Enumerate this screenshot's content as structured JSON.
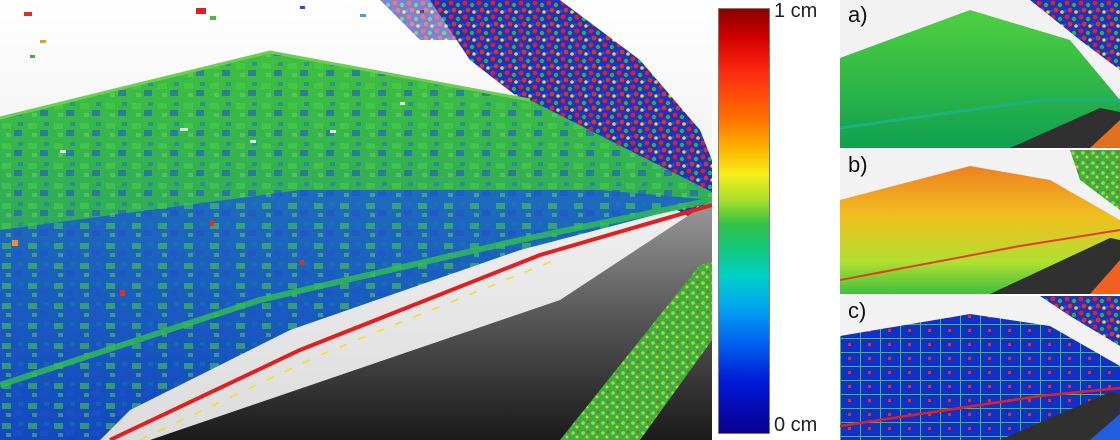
{
  "colorbar": {
    "max_label": "1 cm",
    "min_label": "0 cm",
    "colors": [
      "#8a0000",
      "#ff2a10",
      "#ffb400",
      "#f4ef1a",
      "#30c048",
      "#00d0c8",
      "#0060f0",
      "#0a0090"
    ]
  },
  "insets": {
    "a": {
      "label": "a)"
    },
    "b": {
      "label": "b)"
    },
    "c": {
      "label": "c)"
    }
  }
}
